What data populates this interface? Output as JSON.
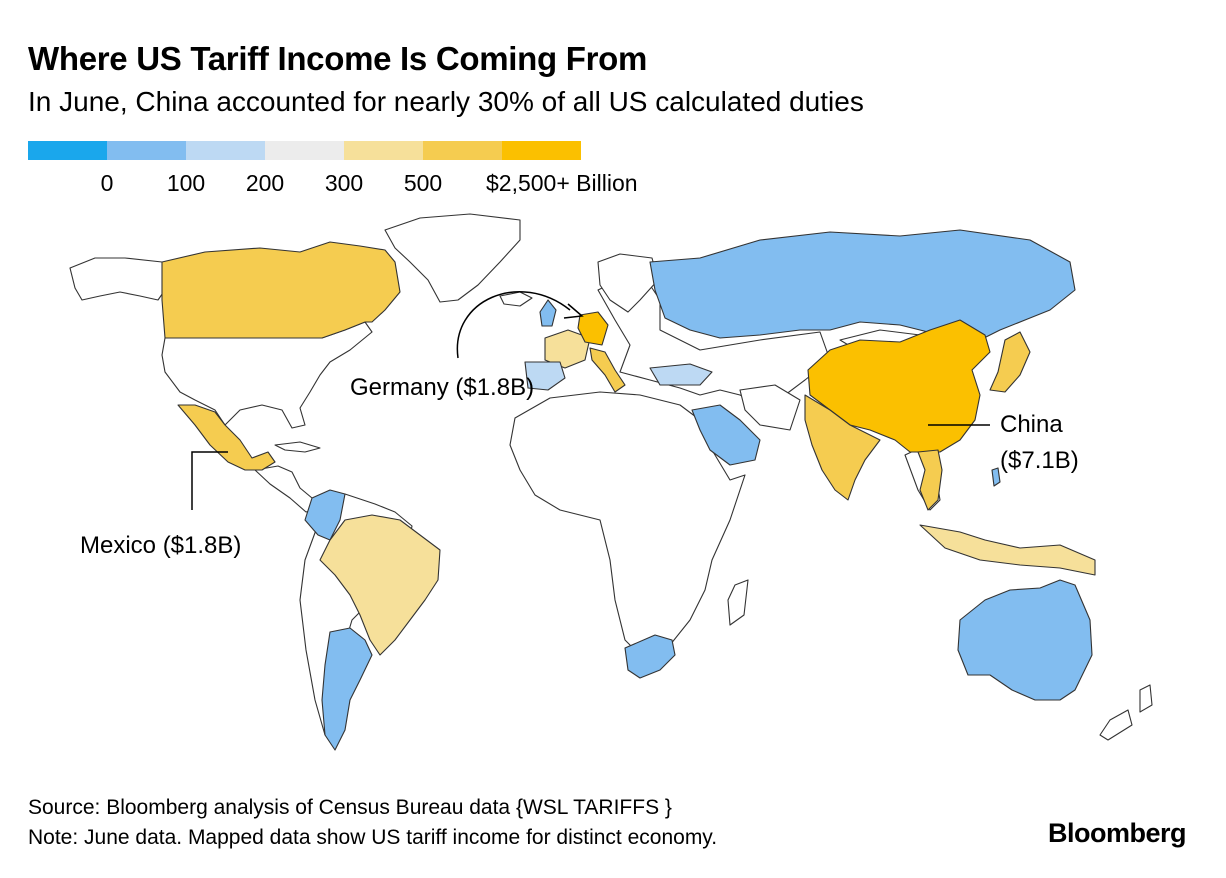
{
  "title": "Where US Tariff Income Is Coming From",
  "subtitle": "In June, China accounted for nearly 30% of all US calculated duties",
  "legend": {
    "colors": [
      "#1aa7ec",
      "#82bdf0",
      "#bdd9f3",
      "#ececec",
      "#f6e09a",
      "#f5cc50",
      "#fbc000"
    ],
    "labels": [
      "0",
      "100",
      "200",
      "300",
      "500",
      "$2,500+ Billion"
    ]
  },
  "annotations": {
    "germany": "Germany ($1.8B)",
    "mexico": "Mexico ($1.8B)",
    "china_line1": "China",
    "china_line2": "($7.1B)"
  },
  "footer": {
    "source": "Source: Bloomberg analysis of Census Bureau data {WSL TARIFFS }",
    "note": "Note: June data. Mapped data show US tariff income for distinct economy."
  },
  "brand": "Bloomberg",
  "map_data": {
    "countries": [
      {
        "name": "China",
        "duties_billion": 7.1,
        "color": "#fbc000"
      },
      {
        "name": "Germany",
        "duties_billion": 1.8,
        "color": "#fbc000"
      },
      {
        "name": "Mexico",
        "duties_billion": 1.8,
        "color": "#f5cc50"
      },
      {
        "name": "Canada",
        "color": "#f5cc50"
      },
      {
        "name": "India",
        "color": "#f5cc50"
      },
      {
        "name": "Japan",
        "color": "#f5cc50"
      },
      {
        "name": "Vietnam",
        "color": "#f5cc50"
      },
      {
        "name": "Italy",
        "color": "#f5cc50"
      },
      {
        "name": "Brazil",
        "color": "#f6e09a"
      },
      {
        "name": "France",
        "color": "#f6e09a"
      },
      {
        "name": "Indonesia",
        "color": "#f6e09a"
      },
      {
        "name": "Russia",
        "color": "#82bdf0"
      },
      {
        "name": "Australia",
        "color": "#82bdf0"
      },
      {
        "name": "Argentina",
        "color": "#82bdf0"
      },
      {
        "name": "Saudi Arabia",
        "color": "#82bdf0"
      },
      {
        "name": "South Africa",
        "color": "#82bdf0"
      },
      {
        "name": "Colombia",
        "color": "#82bdf0"
      },
      {
        "name": "Spain",
        "color": "#bdd9f3"
      },
      {
        "name": "Turkey",
        "color": "#bdd9f3"
      }
    ]
  }
}
